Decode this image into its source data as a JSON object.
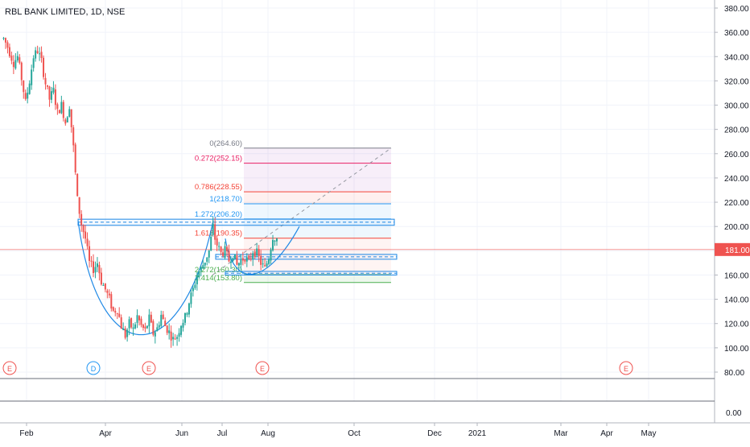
{
  "header": {
    "title": "RBL BANK LIMITED, 1D, NSE"
  },
  "colors": {
    "up": "#26a69a",
    "down": "#ef5350",
    "price_line": "#ef5350",
    "zone_blue": "#1e88e5",
    "grid": "#f0f3fa",
    "axis_text": "#131722"
  },
  "chart_data": {
    "type": "candlestick",
    "symbol": "RBL BANK LIMITED",
    "interval": "1D",
    "exchange": "NSE",
    "ylim": [
      74,
      390
    ],
    "y_ticks": [
      380,
      360,
      340,
      320,
      300,
      280,
      260,
      240,
      220,
      200,
      180,
      160,
      140,
      120,
      100,
      80
    ],
    "y_tick_labels": [
      "380.00",
      "360.00",
      "340.00",
      "320.00",
      "300.00",
      "280.00",
      "260.00",
      "240.00",
      "220.00",
      "200.00",
      "180.00",
      "160.00",
      "140.00",
      "120.00",
      "100.00",
      "80.00"
    ],
    "volume_tick_label": "0.00",
    "x_labels": [
      "Feb",
      "Apr",
      "Jun",
      "Jul",
      "Aug",
      "Oct",
      "Dec",
      "2021",
      "Mar",
      "Apr",
      "May"
    ],
    "last_price": 181.0,
    "last_price_label": "181.00",
    "ohlc_path": [
      [
        1,
        355
      ],
      [
        3,
        348
      ],
      [
        6,
        335
      ],
      [
        8,
        340
      ],
      [
        10,
        322
      ],
      [
        12,
        302
      ],
      [
        14,
        320
      ],
      [
        16,
        340
      ],
      [
        18,
        345
      ],
      [
        20,
        336
      ],
      [
        22,
        318
      ],
      [
        24,
        305
      ],
      [
        26,
        312
      ],
      [
        28,
        294
      ],
      [
        30,
        300
      ],
      [
        32,
        286
      ],
      [
        34,
        300
      ],
      [
        36,
        265
      ],
      [
        38,
        222
      ],
      [
        40,
        202
      ],
      [
        42,
        190
      ],
      [
        44,
        170
      ],
      [
        46,
        165
      ],
      [
        48,
        170
      ],
      [
        50,
        155
      ],
      [
        52,
        148
      ],
      [
        54,
        140
      ],
      [
        56,
        130
      ],
      [
        58,
        132
      ],
      [
        60,
        118
      ],
      [
        62,
        110
      ],
      [
        64,
        120
      ],
      [
        66,
        115
      ],
      [
        68,
        126
      ],
      [
        70,
        118
      ],
      [
        72,
        114
      ],
      [
        74,
        124
      ],
      [
        76,
        112
      ],
      [
        78,
        116
      ],
      [
        80,
        127
      ],
      [
        82,
        118
      ],
      [
        84,
        113
      ],
      [
        86,
        107
      ],
      [
        88,
        110
      ],
      [
        90,
        120
      ],
      [
        92,
        125
      ],
      [
        94,
        138
      ],
      [
        96,
        148
      ],
      [
        98,
        160
      ],
      [
        100,
        165
      ],
      [
        102,
        172
      ],
      [
        104,
        180
      ],
      [
        106,
        200
      ],
      [
        107,
        190
      ],
      [
        108,
        185
      ],
      [
        110,
        178
      ],
      [
        112,
        180
      ],
      [
        114,
        172
      ],
      [
        116,
        178
      ],
      [
        118,
        168
      ],
      [
        120,
        172
      ],
      [
        122,
        175
      ],
      [
        124,
        170
      ],
      [
        126,
        180
      ],
      [
        128,
        178
      ],
      [
        130,
        170
      ],
      [
        132,
        165
      ],
      [
        134,
        175
      ],
      [
        136,
        192
      ],
      [
        138,
        190
      ]
    ],
    "ohlc_path_x_domain": [
      0,
      138
    ],
    "time_axis_note": "candles span early Feb through mid Aug; x_labels mark months",
    "drawings": {
      "fib_levels": [
        {
          "label": "0(264.60)",
          "value": 264.6,
          "color": "#787b86"
        },
        {
          "label": "0.272(252.15)",
          "value": 252.15,
          "color": "#e91e63"
        },
        {
          "label": "0.786(228.55)",
          "value": 228.55,
          "color": "#f44336"
        },
        {
          "label": "1(218.70)",
          "value": 218.7,
          "color": "#2196f3"
        },
        {
          "label": "1.272(206.20)",
          "value": 206.2,
          "color": "#2196f3"
        },
        {
          "label": "1.618(190.35)",
          "value": 190.35,
          "color": "#f44336"
        },
        {
          "label": "2.272(160.30)",
          "value": 160.3,
          "color": "#4caf50"
        },
        {
          "label": "2.414(153.80)",
          "value": 153.8,
          "color": "#4caf50"
        }
      ],
      "resistance_zone": [
        201,
        206
      ],
      "support_zone_upper": [
        173,
        177
      ],
      "support_zone_lower": [
        160,
        163
      ],
      "cup_bottom": 98,
      "handle_bottom": 162
    },
    "events": [
      {
        "label": "E",
        "color": "#ef5350"
      },
      {
        "label": "D",
        "color": "#2196f3"
      },
      {
        "label": "E",
        "color": "#ef5350"
      },
      {
        "label": "E",
        "color": "#ef5350"
      },
      {
        "label": "E",
        "color": "#ef5350"
      }
    ]
  }
}
